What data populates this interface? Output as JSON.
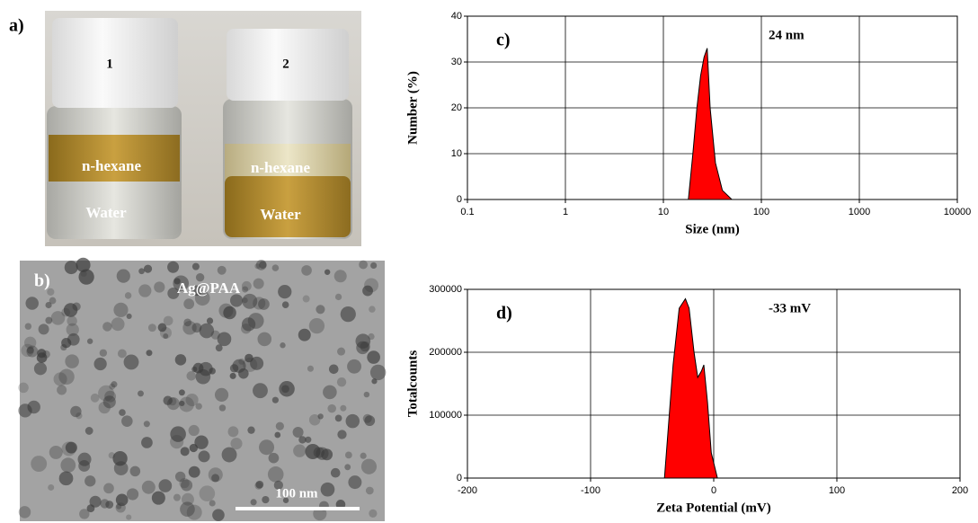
{
  "panel_a": {
    "label": "a)",
    "vials": [
      {
        "number": "1",
        "top_layer": "n-hexane",
        "bottom_layer": "Water"
      },
      {
        "number": "2",
        "top_layer": "n-hexane",
        "bottom_layer": "Water"
      }
    ]
  },
  "panel_b": {
    "label": "b)",
    "title": "Ag@PAA",
    "scale_bar": "100 nm"
  },
  "chart_data": [
    {
      "type": "area",
      "label": "c)",
      "annotation": "24 nm",
      "xlabel": "Size (nm)",
      "ylabel": "Number (%)",
      "xscale": "log",
      "grid": true,
      "color": "#ff0000",
      "x": [
        18,
        20,
        22,
        24,
        26,
        28,
        30,
        34,
        40,
        50
      ],
      "values": [
        0,
        10,
        20,
        27,
        31,
        33,
        20,
        8,
        2,
        0
      ],
      "xlim": [
        0.1,
        10000
      ],
      "xticks": [
        0.1,
        1,
        10,
        100,
        1000,
        10000
      ],
      "ylim": [
        0,
        40
      ],
      "yticks": [
        0,
        10,
        20,
        30,
        40
      ]
    },
    {
      "type": "area",
      "label": "d)",
      "annotation": "-33 mV",
      "xlabel": "Zeta Potential (mV)",
      "ylabel": "Totalcounts",
      "xscale": "linear",
      "grid": true,
      "color": "#ff0000",
      "x": [
        -40,
        -33,
        -28,
        -23,
        -20,
        -16,
        -13,
        -10,
        -8,
        -5,
        -2,
        3
      ],
      "values": [
        0,
        180000,
        270000,
        285000,
        270000,
        200000,
        160000,
        170000,
        180000,
        120000,
        40000,
        0
      ],
      "xlim": [
        -200,
        200
      ],
      "xticks": [
        -200,
        -100,
        0,
        100,
        200
      ],
      "ylim": [
        0,
        300000
      ],
      "yticks": [
        0,
        100000,
        200000,
        300000
      ]
    }
  ]
}
